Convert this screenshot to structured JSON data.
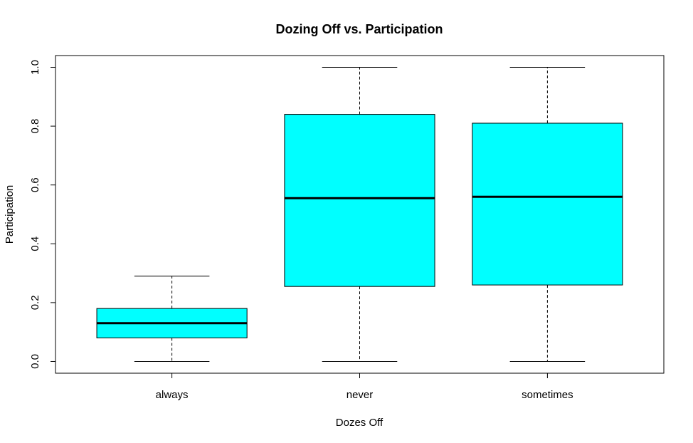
{
  "chart_data": {
    "type": "box",
    "title": "Dozing Off vs. Participation",
    "xlabel": "Dozes Off",
    "ylabel": "Participation",
    "ylim": [
      -0.04,
      1.04
    ],
    "yticks": [
      "0.0",
      "0.2",
      "0.4",
      "0.6",
      "0.8",
      "1.0"
    ],
    "categories": [
      "always",
      "never",
      "sometimes"
    ],
    "boxes": [
      {
        "category": "always",
        "min": 0.0,
        "q1": 0.08,
        "median": 0.13,
        "q3": 0.18,
        "max": 0.29
      },
      {
        "category": "never",
        "min": 0.0,
        "q1": 0.255,
        "median": 0.555,
        "q3": 0.84,
        "max": 1.0
      },
      {
        "category": "sometimes",
        "min": 0.0,
        "q1": 0.26,
        "median": 0.56,
        "q3": 0.81,
        "max": 1.0
      }
    ],
    "box_color": "#00FFFF",
    "grid": false,
    "legend": "none"
  }
}
